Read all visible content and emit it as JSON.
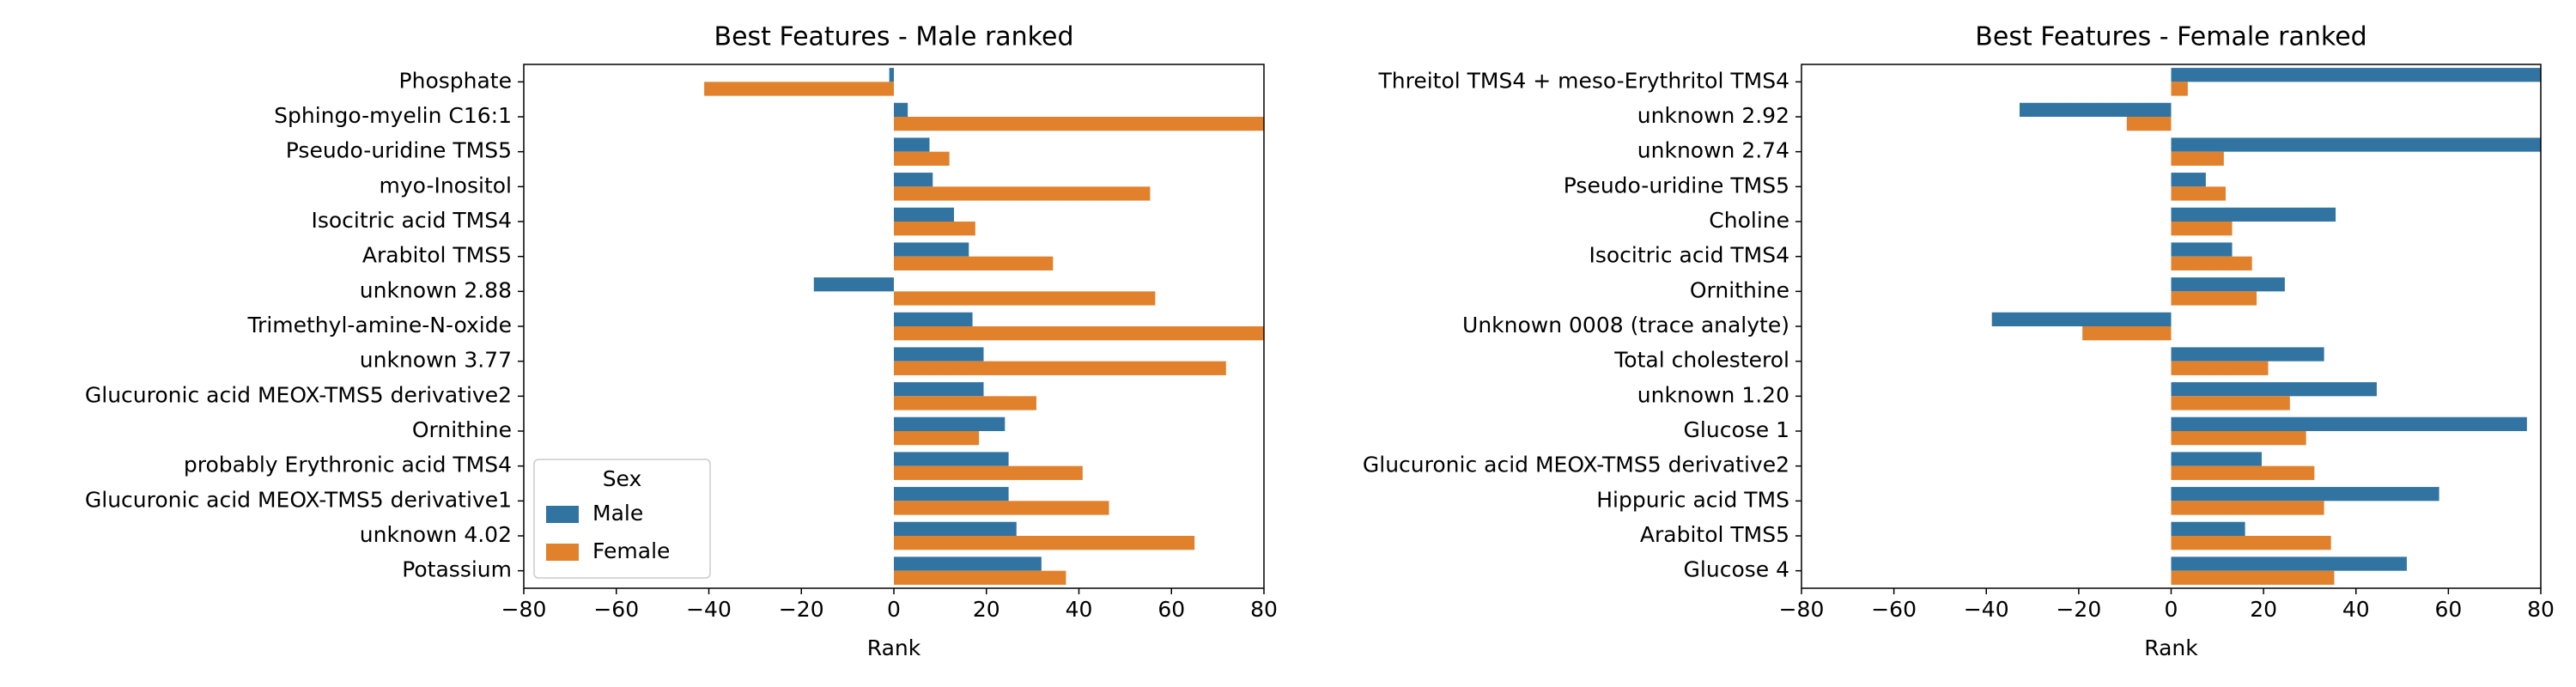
{
  "chart_data": [
    {
      "type": "bar",
      "orientation": "horizontal",
      "title": "Best Features - Male ranked",
      "xlabel": "Rank",
      "categories": [
        "Phosphate",
        "Sphingo-myelin C16:1",
        "Pseudo-uridine TMS5",
        "myo-Inositol",
        "Isocitric acid TMS4",
        "Arabitol TMS5",
        "unknown 2.88",
        "Trimethyl-amine-N-oxide",
        "unknown 3.77",
        "Glucuronic acid MEOX-TMS5 derivative2",
        "Ornithine",
        "probably Erythronic acid TMS4",
        "Glucuronic acid MEOX-TMS5 derivative1",
        "unknown 4.02",
        "Potassium"
      ],
      "series": [
        {
          "name": "Male",
          "color": "#3274a1",
          "values": [
            -1,
            3,
            7.7,
            8.4,
            13,
            16.2,
            -17.3,
            17,
            19.4,
            19.4,
            24,
            24.8,
            24.8,
            26.5,
            31.9
          ]
        },
        {
          "name": "Female",
          "color": "#e1812c",
          "values": [
            -41,
            80,
            12,
            55.4,
            17.6,
            34.4,
            56.5,
            80,
            71.8,
            30.8,
            18.4,
            40.8,
            46.5,
            65,
            37.2
          ]
        }
      ],
      "xlim": [
        -80,
        80
      ],
      "xticks": [
        {
          "value": -80,
          "label": "−80"
        },
        {
          "value": -60,
          "label": "−60"
        },
        {
          "value": -40,
          "label": "−40"
        },
        {
          "value": -20,
          "label": "−20"
        },
        0,
        20,
        40,
        60,
        80
      ],
      "legend": {
        "title": "Sex",
        "loc": "lower left"
      }
    },
    {
      "type": "bar",
      "orientation": "horizontal",
      "title": "Best Features - Female ranked",
      "xlabel": "Rank",
      "categories": [
        "Threitol TMS4 + meso-Erythritol TMS4",
        "unknown 2.92",
        "unknown 2.74",
        "Pseudo-uridine TMS5",
        "Choline",
        "Isocitric acid TMS4",
        "Ornithine",
        "Unknown 0008 (trace analyte)",
        "Total cholesterol",
        "unknown 1.20",
        "Glucose 1",
        "Glucuronic acid MEOX-TMS5 derivative2",
        "Hippuric acid TMS",
        "Arabitol TMS5",
        "Glucose 4"
      ],
      "series": [
        {
          "color": "#3274a1",
          "values": [
            80,
            -32.8,
            80,
            7.5,
            35.6,
            13.2,
            24.6,
            -38.8,
            33.1,
            44.5,
            77,
            19.6,
            58,
            16,
            51
          ]
        },
        {
          "color": "#e1812c",
          "values": [
            3.6,
            -9.6,
            11.4,
            11.8,
            13.2,
            17.5,
            18.5,
            -19.2,
            21,
            25.7,
            29.2,
            31,
            33.1,
            34.6,
            35.3
          ]
        }
      ],
      "xlim": [
        -80,
        80
      ],
      "xticks": [
        {
          "value": -80,
          "label": "−80"
        },
        {
          "value": -60,
          "label": "−60"
        },
        {
          "value": -40,
          "label": "−40"
        },
        {
          "value": -20,
          "label": "−20"
        },
        0,
        20,
        40,
        60,
        80
      ]
    }
  ]
}
